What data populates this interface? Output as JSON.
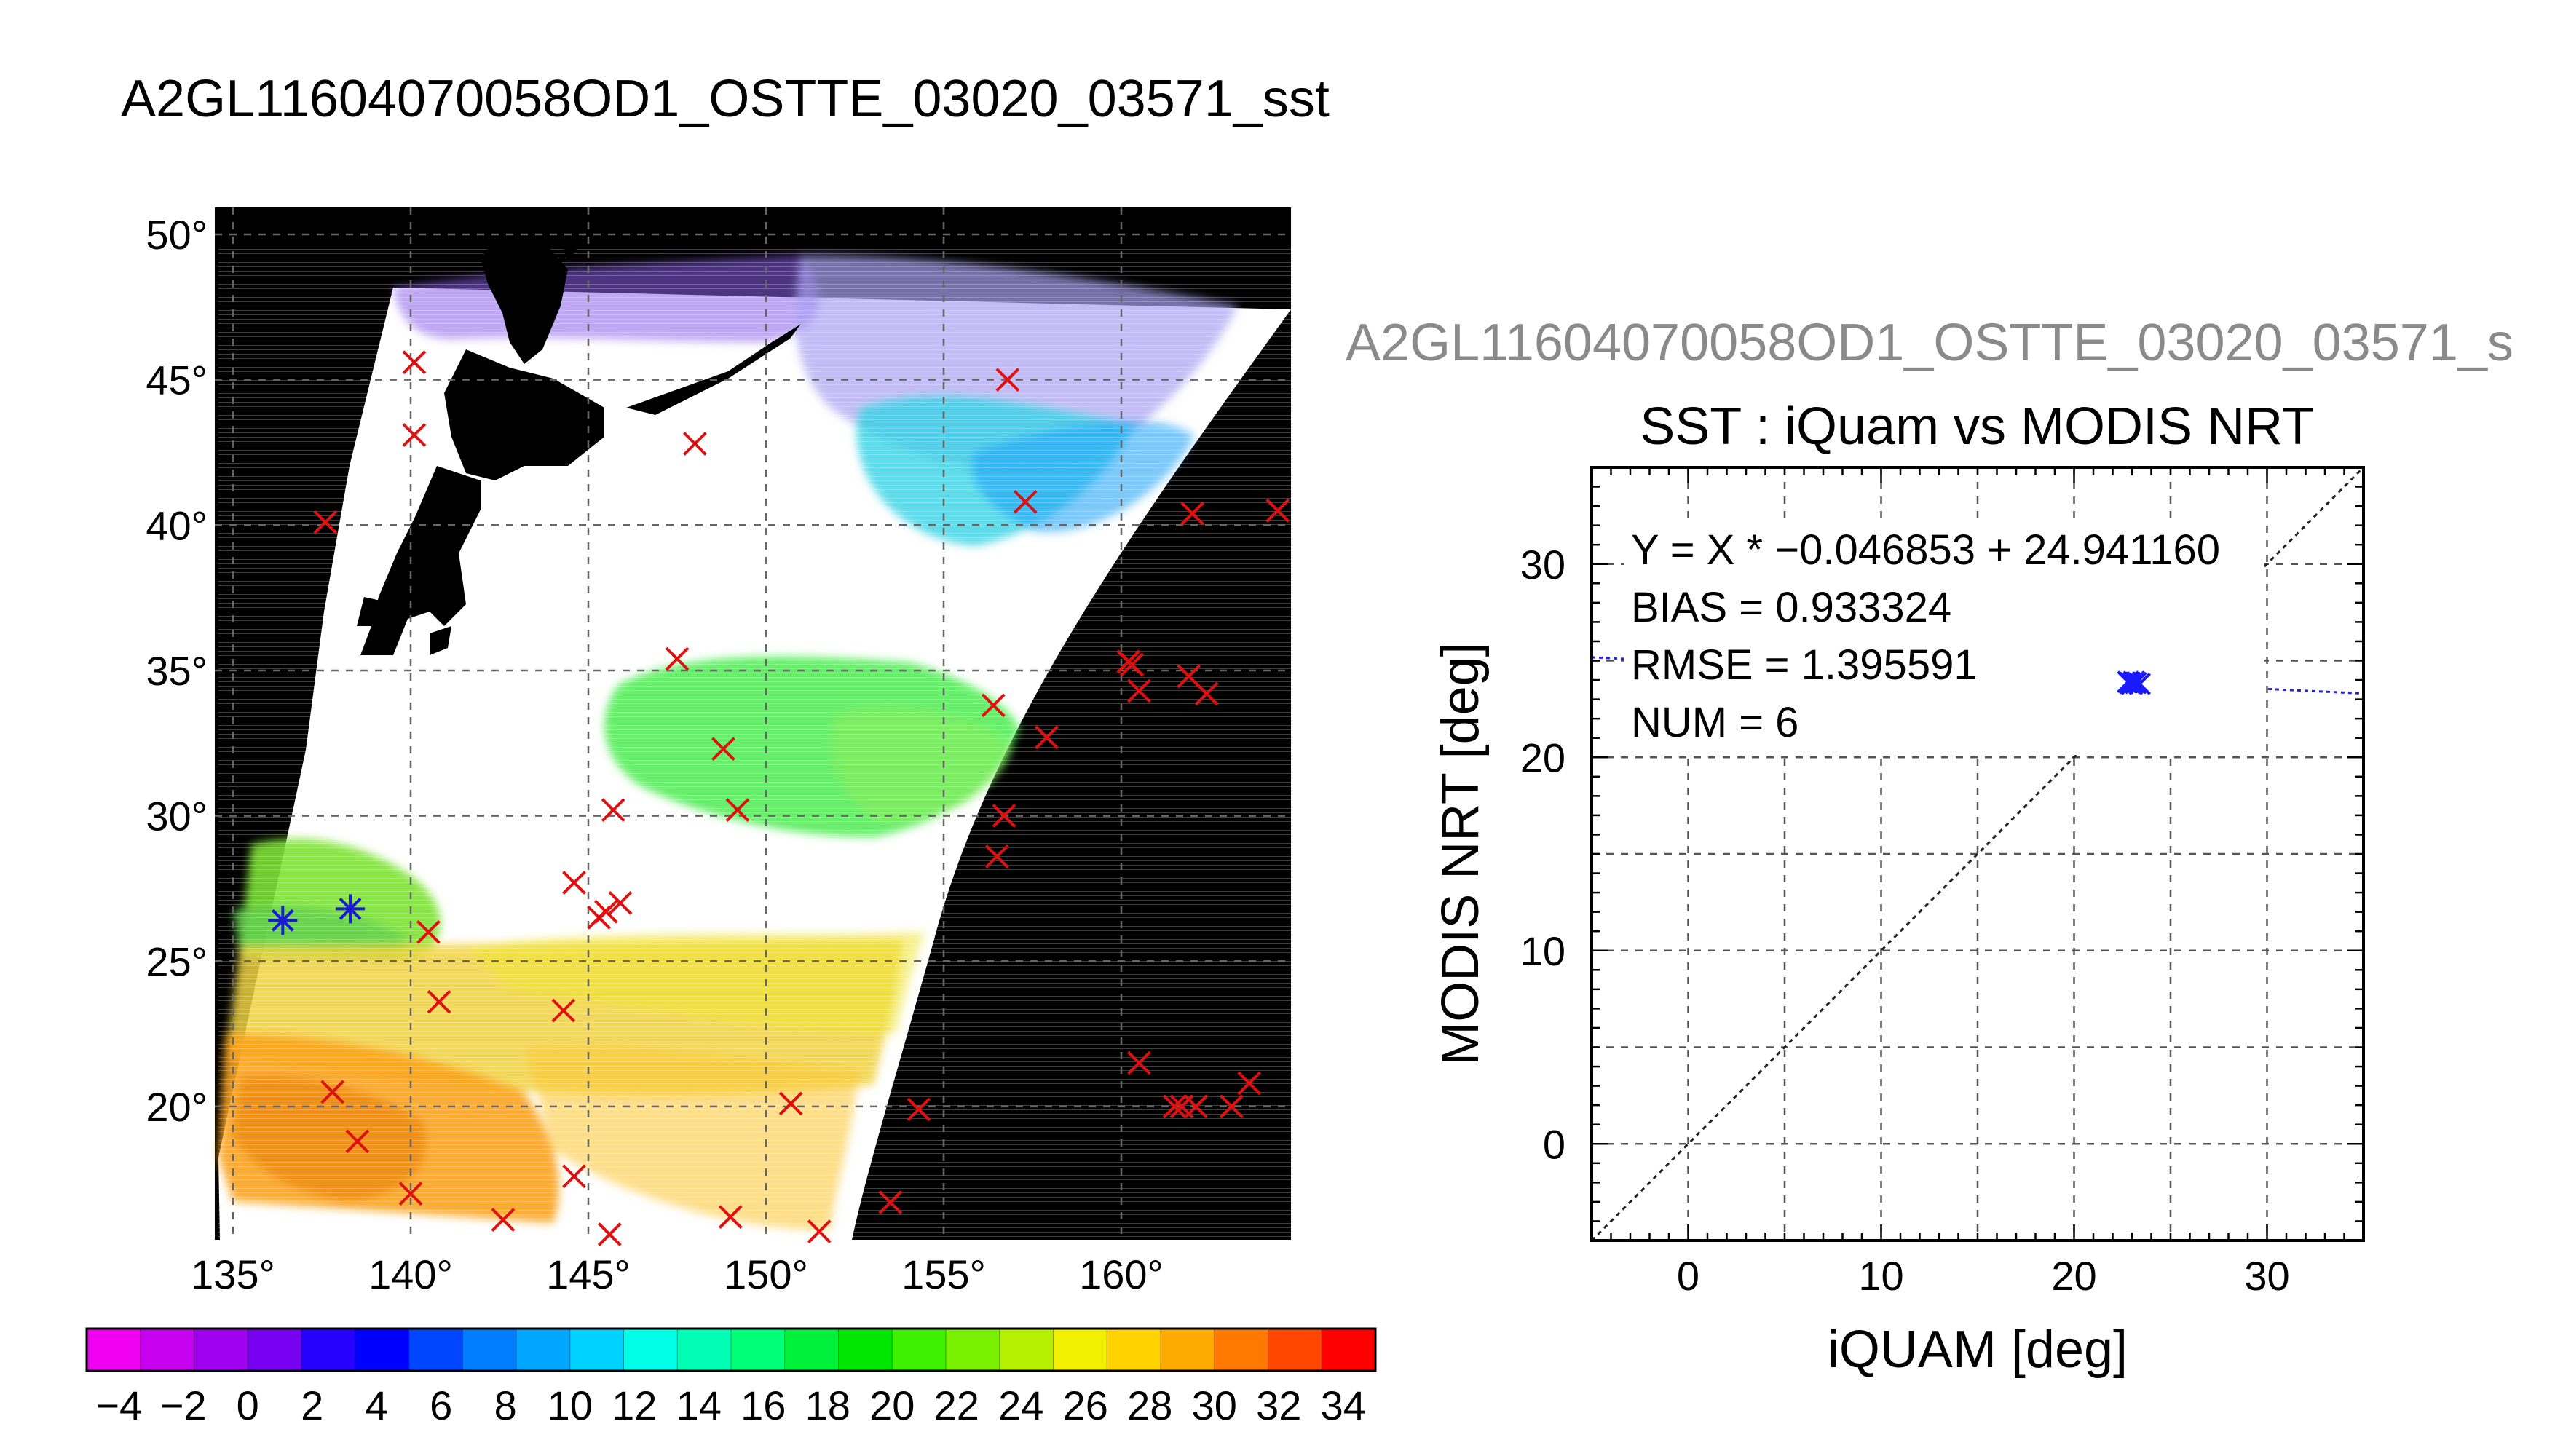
{
  "figure": {
    "main_title": "A2GL11604070058OD1_OSTTE_03020_03571_sst",
    "scatter_file_title": "A2GL11604070058OD1_OSTTE_03020_03571_s"
  },
  "chart_data": [
    {
      "type": "map",
      "description_none": "",
      "lon_ticks": [
        135,
        140,
        145,
        150,
        155,
        160
      ],
      "lat_ticks": [
        50,
        45,
        40,
        35,
        30,
        25,
        20
      ],
      "lon_tick_labels": [
        "135°",
        "140°",
        "145°",
        "150°",
        "155°",
        "160°"
      ],
      "lat_tick_labels": [
        "50°",
        "45°",
        "40°",
        "35°",
        "30°",
        "25°",
        "20°"
      ],
      "lon_range": [
        134.5,
        164.8
      ],
      "lat_range": [
        15.2,
        51.0
      ],
      "grid": true,
      "colorbar": {
        "min": -5,
        "max": 35,
        "step": 2,
        "tick_labels": [
          "−4",
          "−2",
          "0",
          "2",
          "4",
          "6",
          "8",
          "10",
          "12",
          "14",
          "16",
          "18",
          "20",
          "22",
          "24",
          "26",
          "28",
          "30",
          "32",
          "34"
        ],
        "colors": [
          "#f000f0",
          "#c800f0",
          "#a000f0",
          "#7800f0",
          "#2800ff",
          "#0000ff",
          "#0046ff",
          "#007dff",
          "#00a5ff",
          "#00d2ff",
          "#00ffe6",
          "#00ffb4",
          "#00ff78",
          "#00f03c",
          "#00e600",
          "#3cf000",
          "#78f000",
          "#b4f000",
          "#f0f000",
          "#ffd200",
          "#ffaa00",
          "#ff7800",
          "#ff4600",
          "#ff0000"
        ]
      },
      "iquam_points": [
        [
          140.1,
          45.6
        ],
        [
          140.1,
          43.1
        ],
        [
          137.6,
          40.1
        ],
        [
          148.0,
          42.8
        ],
        [
          156.8,
          45.0
        ],
        [
          157.3,
          40.8
        ],
        [
          147.5,
          35.4
        ],
        [
          148.8,
          32.3
        ],
        [
          149.2,
          30.2
        ],
        [
          145.7,
          30.2
        ],
        [
          144.6,
          27.7
        ],
        [
          145.9,
          27.0
        ],
        [
          145.3,
          26.5
        ],
        [
          145.5,
          26.7
        ],
        [
          140.5,
          26.0
        ],
        [
          140.8,
          23.6
        ],
        [
          144.3,
          23.3
        ],
        [
          137.8,
          20.5
        ],
        [
          138.5,
          18.8
        ],
        [
          140.0,
          17.0
        ],
        [
          142.6,
          16.1
        ],
        [
          144.6,
          17.6
        ],
        [
          145.6,
          15.6
        ],
        [
          149.0,
          16.2
        ],
        [
          150.7,
          20.1
        ],
        [
          151.5,
          15.7
        ],
        [
          153.5,
          16.7
        ],
        [
          154.3,
          19.9
        ],
        [
          156.4,
          33.8
        ],
        [
          156.5,
          28.6
        ],
        [
          156.7,
          30.0
        ],
        [
          157.9,
          32.7
        ],
        [
          160.2,
          35.3
        ],
        [
          160.5,
          34.3
        ],
        [
          160.5,
          21.5
        ],
        [
          161.5,
          20.0
        ],
        [
          161.7,
          20.0
        ],
        [
          162.1,
          20.0
        ],
        [
          161.9,
          34.8
        ],
        [
          162.4,
          34.2
        ],
        [
          163.1,
          20.0
        ],
        [
          163.6,
          20.8
        ],
        [
          162.0,
          40.4
        ],
        [
          164.4,
          40.5
        ],
        [
          160.3,
          35.2
        ]
      ],
      "matchup_points": [
        [
          136.4,
          26.4
        ],
        [
          138.3,
          26.8
        ]
      ]
    },
    {
      "type": "scatter",
      "title": "SST : iQuam vs MODIS NRT",
      "xlabel": "iQUAM [deg]",
      "ylabel": "MODIS NRT [deg]",
      "xlim": [
        -5,
        35
      ],
      "ylim": [
        -5,
        35
      ],
      "xticks": [
        0,
        10,
        20,
        30
      ],
      "yticks": [
        0,
        10,
        20,
        30
      ],
      "grid": true,
      "annotations": [
        "Y = X * −0.046853 + 24.941160",
        "BIAS = 0.933324",
        "RMSE = 1.395591",
        "NUM = 6"
      ],
      "fit": {
        "slope": -0.046853,
        "intercept": 24.94116
      },
      "points": [
        {
          "x": 22.8,
          "y": 23.9
        },
        {
          "x": 23.0,
          "y": 23.8
        },
        {
          "x": 23.2,
          "y": 23.85
        },
        {
          "x": 23.4,
          "y": 23.8
        },
        {
          "x": 23.1,
          "y": 23.9
        },
        {
          "x": 22.9,
          "y": 23.85
        }
      ]
    }
  ]
}
